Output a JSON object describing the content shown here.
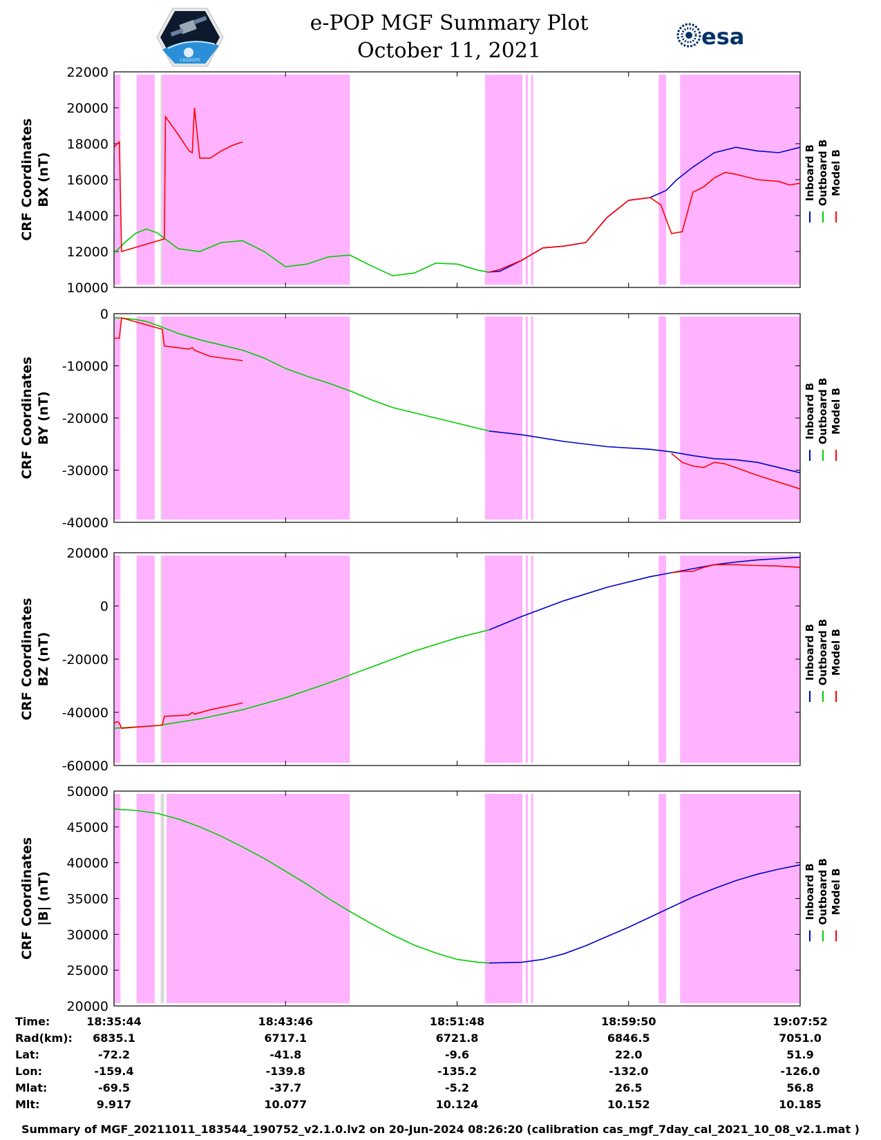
{
  "header": {
    "title_line1": "e-POP MGF Summary Plot",
    "title_line2": "October 11, 2021",
    "left_logo": "cassiope-satellite-logo",
    "left_logo_text": "CASSIOPE",
    "right_logo": "esa-logo",
    "right_logo_text": "esa"
  },
  "colors": {
    "inboard": "#0000cc",
    "outboard": "#00cc00",
    "model": "#ff0000",
    "shade": "#ffb3ff",
    "gap": "#d9d9d9"
  },
  "legend": [
    "Inboard B",
    "Outboard B",
    "Model B"
  ],
  "chart_data": [
    {
      "type": "line",
      "ylabel": "CRF Coordinates BX (nT)",
      "ylim": [
        10000,
        22000
      ],
      "yticks": [
        "22000",
        "20000",
        "18000",
        "16000",
        "14000",
        "12000",
        "10000"
      ],
      "xlim": [
        0,
        64
      ],
      "shaded_minutes": [
        [
          0,
          0.6
        ],
        [
          2.1,
          3.8
        ],
        [
          4.5,
          22
        ]
      ],
      "series": [
        {
          "name": "Inboard B",
          "x": [
            34.8,
            36,
            38,
            40,
            42,
            44,
            46,
            48,
            50,
            51.5,
            52.5,
            54,
            56,
            58,
            60,
            62,
            64
          ],
          "y": [
            10850,
            10900,
            11500,
            12200,
            12300,
            12500,
            13900,
            14850,
            15000,
            15400,
            16000,
            16700,
            17500,
            17800,
            17600,
            17500,
            17800
          ]
        },
        {
          "name": "Outboard B",
          "x": [
            0,
            1,
            2,
            3,
            4,
            6,
            8,
            10,
            12,
            14,
            16,
            18,
            20,
            22,
            24,
            26,
            28,
            30,
            32,
            34,
            35
          ],
          "y": [
            11900,
            12500,
            13000,
            13250,
            13050,
            12150,
            12000,
            12500,
            12600,
            12000,
            11150,
            11300,
            11700,
            11800,
            11200,
            10650,
            10800,
            11350,
            11300,
            10950,
            10850
          ]
        },
        {
          "name": "Model B",
          "x": [
            0,
            0.3,
            0.5,
            0.7,
            4.7,
            4.8,
            6,
            7,
            7.3,
            7.5,
            8,
            9,
            10,
            11,
            12
          ],
          "y": [
            17800,
            18000,
            18100,
            12000,
            12700,
            19500,
            18500,
            17600,
            17500,
            20000,
            17200,
            17200,
            17600,
            17900,
            18100
          ]
        },
        {
          "name": "Model B",
          "x": [
            35,
            36,
            38,
            40,
            42,
            44,
            46,
            48,
            50,
            51,
            52,
            53,
            54,
            55,
            56,
            57,
            58,
            60,
            62,
            63,
            64
          ],
          "y": [
            10850,
            11000,
            11500,
            12200,
            12300,
            12500,
            13900,
            14850,
            15000,
            14600,
            13000,
            13100,
            15300,
            15600,
            16100,
            16400,
            16300,
            16000,
            15900,
            15700,
            15800
          ]
        }
      ]
    },
    {
      "type": "line",
      "ylabel": "CRF Coordinates BY (nT)",
      "ylim": [
        -40000,
        0
      ],
      "yticks": [
        "0",
        "-10000",
        "-20000",
        "-30000",
        "-40000"
      ],
      "xlim": [
        0,
        64
      ],
      "shaded_minutes": [
        [
          0,
          0.6
        ],
        [
          2.1,
          3.8
        ],
        [
          4.5,
          22
        ]
      ],
      "series": [
        {
          "name": "Inboard B",
          "x": [
            35,
            38,
            42,
            46,
            50,
            52,
            54,
            56,
            58,
            60,
            62,
            64
          ],
          "y": [
            -22500,
            -23200,
            -24500,
            -25500,
            -26000,
            -26500,
            -27200,
            -27800,
            -28000,
            -28500,
            -29500,
            -30500
          ]
        },
        {
          "name": "Outboard B",
          "x": [
            0,
            1,
            2,
            3,
            4,
            6,
            8,
            10,
            12,
            14,
            16,
            18,
            20,
            22,
            24,
            26,
            28,
            30,
            32,
            34,
            35
          ],
          "y": [
            -800,
            -900,
            -1100,
            -1500,
            -2200,
            -3800,
            -5000,
            -6000,
            -7000,
            -8500,
            -10500,
            -12000,
            -13300,
            -14800,
            -16500,
            -18000,
            -19000,
            -20000,
            -21000,
            -22000,
            -22500
          ]
        },
        {
          "name": "Model B",
          "x": [
            0,
            0.5,
            0.7,
            4.5,
            4.7,
            7,
            7.3,
            7.5,
            9,
            12
          ],
          "y": [
            -4700,
            -4700,
            -800,
            -3000,
            -6200,
            -6800,
            -6500,
            -7000,
            -8200,
            -9000
          ]
        },
        {
          "name": "Model B",
          "x": [
            52,
            53,
            54,
            55,
            56,
            57,
            58,
            60,
            62,
            64
          ],
          "y": [
            -26800,
            -28500,
            -29200,
            -29500,
            -28500,
            -28800,
            -29500,
            -31000,
            -32300,
            -33600
          ]
        }
      ]
    },
    {
      "type": "line",
      "ylabel": "CRF Coordinates BZ (nT)",
      "ylim": [
        -60000,
        20000
      ],
      "yticks": [
        "20000",
        "0",
        "-20000",
        "-40000",
        "-60000"
      ],
      "xlim": [
        0,
        64
      ],
      "shaded_minutes": [
        [
          0,
          0.6
        ],
        [
          2.1,
          3.8
        ],
        [
          4.5,
          22
        ]
      ],
      "series": [
        {
          "name": "Inboard B",
          "x": [
            35,
            38,
            42,
            46,
            50,
            52,
            54,
            56,
            58,
            60,
            62,
            64
          ],
          "y": [
            -9000,
            -4000,
            2000,
            7000,
            11000,
            12500,
            14000,
            15500,
            16500,
            17300,
            17800,
            18300
          ]
        },
        {
          "name": "Outboard B",
          "x": [
            0,
            4,
            8,
            12,
            16,
            20,
            24,
            28,
            32,
            35
          ],
          "y": [
            -46000,
            -45000,
            -42500,
            -39000,
            -34500,
            -29000,
            -23000,
            -17000,
            -12000,
            -9000
          ]
        },
        {
          "name": "Model B",
          "x": [
            0,
            0.3,
            0.5,
            0.7,
            4.5,
            4.7,
            7,
            7.3,
            7.5,
            9,
            12
          ],
          "y": [
            -44000,
            -43500,
            -44000,
            -46000,
            -44800,
            -41500,
            -41000,
            -40000,
            -40700,
            -39000,
            -36500
          ]
        },
        {
          "name": "Model B",
          "x": [
            52,
            53,
            54,
            55,
            56,
            57,
            58,
            60,
            62,
            64
          ],
          "y": [
            12500,
            13000,
            13000,
            14500,
            15500,
            15500,
            15500,
            15200,
            15000,
            14500
          ]
        }
      ]
    },
    {
      "type": "line",
      "ylabel": "CRF Coordinates |B| (nT)",
      "ylim": [
        20000,
        50000
      ],
      "yticks": [
        "50000",
        "45000",
        "40000",
        "35000",
        "30000",
        "25000",
        "20000"
      ],
      "xlim": [
        0,
        64
      ],
      "shaded_minutes": [
        [
          0,
          0.6
        ],
        [
          2.1,
          3.8
        ],
        [
          4.9,
          22
        ]
      ],
      "series": [
        {
          "name": "Inboard B",
          "x": [
            35,
            38,
            40,
            42,
            44,
            46,
            48,
            50,
            52,
            54,
            56,
            58,
            60,
            62,
            64
          ],
          "y": [
            26000,
            26100,
            26500,
            27300,
            28400,
            29700,
            31000,
            32400,
            33800,
            35200,
            36400,
            37500,
            38400,
            39100,
            39700
          ]
        },
        {
          "name": "Outboard B",
          "x": [
            0,
            2,
            4,
            6,
            8,
            10,
            12,
            14,
            16,
            18,
            20,
            22,
            24,
            26,
            28,
            30,
            32,
            34,
            35
          ],
          "y": [
            47500,
            47300,
            46900,
            46100,
            45000,
            43700,
            42200,
            40600,
            38800,
            37000,
            35000,
            33200,
            31500,
            29900,
            28500,
            27400,
            26500,
            26100,
            26000
          ]
        }
      ]
    }
  ],
  "x_ticks": [
    "18:35:44",
    "18:43:46",
    "18:51:48",
    "18:59:50",
    "19:07:52"
  ],
  "info_table": {
    "labels": [
      "Time:",
      "Rad(km):",
      "Lat:",
      "Lon:",
      "Mlat:",
      "Mlt:"
    ],
    "rows": [
      [
        "18:35:44",
        "18:43:46",
        "18:51:48",
        "18:59:50",
        "19:07:52"
      ],
      [
        "6835.1",
        "6717.1",
        "6721.8",
        "6846.5",
        "7051.0"
      ],
      [
        "-72.2",
        "-41.8",
        "-9.6",
        "22.0",
        "51.9"
      ],
      [
        "-159.4",
        "-139.8",
        "-135.2",
        "-132.0",
        "-126.0"
      ],
      [
        "-69.5",
        "-37.7",
        "-5.2",
        "26.5",
        "56.8"
      ],
      [
        "9.917",
        "10.077",
        "10.124",
        "10.152",
        "10.185"
      ]
    ]
  },
  "footer": "Summary of MGF_20211011_183544_190752_v2.1.0.lv2 on 20-Jun-2024 08:26:20 (calibration cas_mgf_7day_cal_2021_10_08_v2.1.mat )"
}
